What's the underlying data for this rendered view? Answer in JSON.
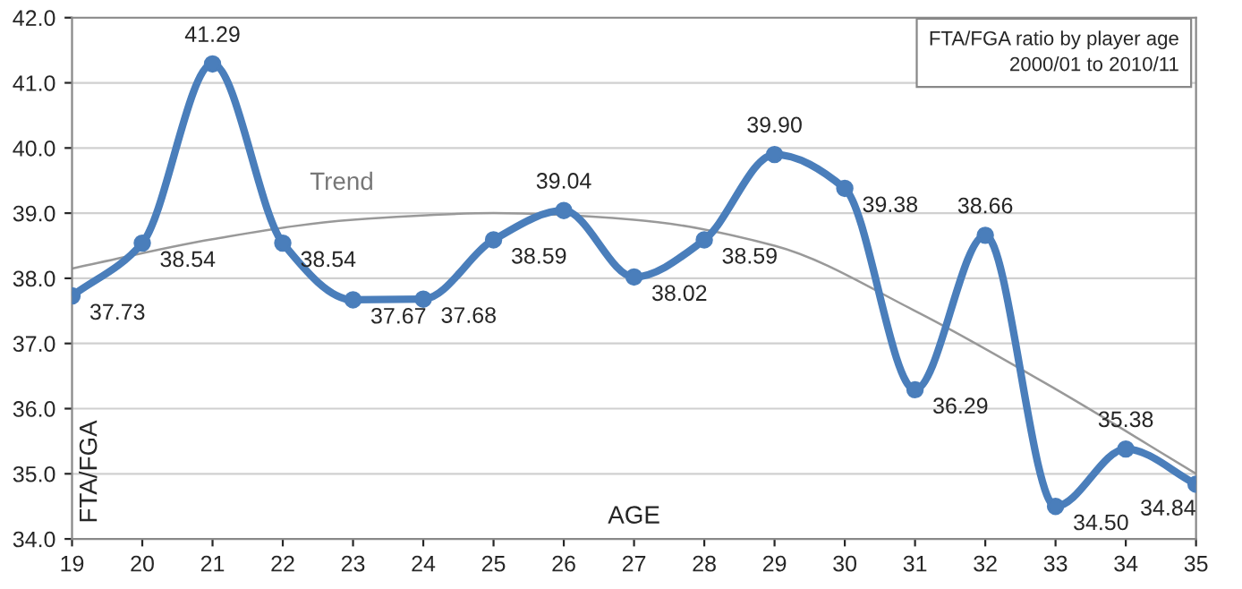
{
  "chart_data": {
    "type": "line",
    "title": "FTA/FGA ratio by player age\n2000/01 to 2010/11",
    "xlabel": "AGE",
    "ylabel": "FTA/FGA",
    "x": [
      19,
      20,
      21,
      22,
      23,
      24,
      25,
      26,
      27,
      28,
      29,
      30,
      31,
      32,
      33,
      34,
      35
    ],
    "series": [
      {
        "color": "#4a7ebb",
        "values": [
          37.73,
          38.54,
          41.29,
          38.54,
          37.67,
          37.68,
          38.59,
          39.04,
          38.02,
          38.59,
          39.9,
          39.38,
          36.29,
          38.66,
          34.5,
          35.38,
          34.84
        ],
        "value_labels": [
          "37.73",
          "38.54",
          "41.29",
          "38.54",
          "37.67",
          "37.68",
          "38.59",
          "39.04",
          "38.02",
          "38.59",
          "39.90",
          "39.38",
          "36.29",
          "38.66",
          "34.50",
          "35.38",
          "34.84"
        ]
      },
      {
        "type": "line",
        "color": "#999999",
        "marker": "none",
        "x": [
          19,
          21,
          23,
          25,
          27,
          29,
          31,
          33,
          35
        ],
        "values": [
          38.15,
          38.6,
          38.9,
          39.0,
          38.9,
          38.5,
          37.5,
          36.3,
          35.0
        ]
      }
    ],
    "annotations": [
      "Trend"
    ],
    "xlim": [
      19,
      35
    ],
    "xticks": [
      19,
      20,
      21,
      22,
      23,
      24,
      25,
      26,
      27,
      28,
      29,
      30,
      31,
      32,
      33,
      34,
      35
    ],
    "ylim": [
      34,
      42
    ],
    "yticks": [
      {
        "value": 34,
        "label": "34.0"
      },
      {
        "value": 35,
        "label": "35.0"
      },
      {
        "value": 36,
        "label": "36.0"
      },
      {
        "value": 37,
        "label": "37.0"
      },
      {
        "value": 38,
        "label": "38.0"
      },
      {
        "value": 39,
        "label": "39.0"
      },
      {
        "value": 40,
        "label": "40.0"
      },
      {
        "value": 41,
        "label": "41.0"
      },
      {
        "value": 42,
        "label": "42.0"
      }
    ],
    "grid": "y",
    "marker": "circle",
    "legend": false
  }
}
